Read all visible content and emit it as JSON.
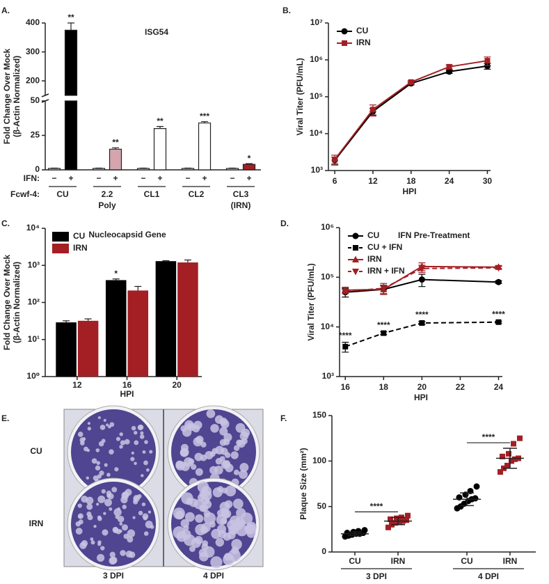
{
  "chart_data": [
    {
      "type": "bar",
      "label": "A.",
      "title": "ISG54",
      "y_label": [
        "Fold Change Over Mock",
        "(β-Actin Normalized)"
      ],
      "category_row_label": "IFN:",
      "categories": [
        "−",
        "+",
        "−",
        "+",
        "−",
        "+",
        "−",
        "+",
        "−",
        "+"
      ],
      "group_row_label": "Fcwf-4:",
      "groups": [
        "CU",
        "2.2",
        "CL1",
        "CL2",
        "CL3"
      ],
      "group_sublabels": [
        null,
        "Poly",
        null,
        null,
        "(IRN)"
      ],
      "values": [
        1,
        375,
        1,
        15,
        1,
        30,
        1,
        34,
        1,
        4
      ],
      "errors": [
        0.3,
        25,
        0.3,
        1,
        0.3,
        1.5,
        0.3,
        1,
        0.3,
        0.5
      ],
      "colors": [
        "#ffffff",
        "#000000",
        "#ffffff",
        "#d4a5ad",
        "#ffffff",
        "#ffffff",
        "#ffffff",
        "#ffffff",
        "#ffffff",
        "#a31f24"
      ],
      "annotations": [
        null,
        "**",
        null,
        "**",
        null,
        "**",
        null,
        "***",
        null,
        "*"
      ],
      "ylim": [
        0,
        400
      ],
      "ybreak": [
        50,
        150
      ],
      "yticks": [
        0,
        25,
        50,
        200,
        300,
        400
      ]
    },
    {
      "type": "line",
      "label": "B.",
      "y_label": "Viral Titer (PFU/mL)",
      "x_label": "HPI",
      "log_y": true,
      "legend": "upper left",
      "x": [
        6,
        12,
        18,
        24,
        30
      ],
      "xlim": [
        5,
        30.5
      ],
      "xticks": [
        6,
        12,
        18,
        24,
        30
      ],
      "ylim": [
        1000,
        10000000
      ],
      "yticks": [
        {
          "value": 1000,
          "label": "10³"
        },
        {
          "value": 10000,
          "label": "10⁴"
        },
        {
          "value": 100000,
          "label": "10⁵"
        },
        {
          "value": 1000000,
          "label": "10⁶"
        },
        {
          "value": 10000000,
          "label": "10⁷"
        }
      ],
      "series": [
        {
          "name": "CU",
          "color": "#000000",
          "marker": "circle",
          "dash": "solid",
          "values": [
            1900,
            40000,
            230000,
            480000,
            680000
          ],
          "errors": [
            400,
            8000,
            20000,
            50000,
            120000
          ]
        },
        {
          "name": "IRN",
          "color": "#a31f24",
          "marker": "square",
          "dash": "solid",
          "values": [
            2000,
            45000,
            250000,
            650000,
            950000
          ],
          "errors": [
            600,
            15000,
            25000,
            80000,
            250000
          ]
        }
      ]
    },
    {
      "type": "bar",
      "label": "C.",
      "title": "Nucleocapsid Gene",
      "y_label": [
        "Fold Change Over Mock",
        "(β-Actin Normalized)"
      ],
      "x_label": "HPI",
      "log_y": true,
      "legend": "upper left",
      "categories": [
        "12",
        "16",
        "20"
      ],
      "ylim": [
        1,
        10000
      ],
      "yticks": [
        {
          "value": 1,
          "label": "10⁰"
        },
        {
          "value": 10,
          "label": "10¹"
        },
        {
          "value": 100,
          "label": "10²"
        },
        {
          "value": 1000,
          "label": "10³"
        },
        {
          "value": 10000,
          "label": "10⁴"
        }
      ],
      "series": [
        {
          "name": "CU",
          "color": "#000000",
          "values": [
            29,
            400,
            1300
          ],
          "errors": [
            3,
            30,
            40
          ],
          "annotations": [
            null,
            "*",
            null
          ]
        },
        {
          "name": "IRN",
          "color": "#a31f24",
          "values": [
            32,
            210,
            1200
          ],
          "errors": [
            4,
            60,
            200
          ]
        }
      ]
    },
    {
      "type": "line",
      "label": "D.",
      "title": "IFN Pre-Treatment",
      "y_label": "Viral Titer (PFU/mL)",
      "x_label": "HPI",
      "log_y": true,
      "legend": "upper left",
      "x": [
        16,
        18,
        20,
        24
      ],
      "xlim": [
        15.7,
        24.2
      ],
      "xticks": [
        16,
        18,
        20,
        22,
        24
      ],
      "ylim": [
        1000,
        1000000
      ],
      "yticks": [
        {
          "value": 1000,
          "label": "10³"
        },
        {
          "value": 10000,
          "label": "10⁴"
        },
        {
          "value": 100000,
          "label": "10⁵"
        },
        {
          "value": 1000000,
          "label": "10⁶"
        }
      ],
      "series": [
        {
          "name": "CU",
          "color": "#000000",
          "marker": "circle",
          "dash": "solid",
          "values": [
            50000,
            57000,
            90000,
            80000
          ],
          "errors": [
            10000,
            12000,
            25000,
            5000
          ]
        },
        {
          "name": "CU + IFN",
          "color": "#000000",
          "marker": "square",
          "dash": "dashed",
          "values": [
            4000,
            7500,
            12000,
            12500
          ],
          "errors": [
            900,
            500,
            800,
            600
          ],
          "annotations": [
            "****",
            "****",
            "****",
            "****"
          ]
        },
        {
          "name": "IRN",
          "color": "#a31f24",
          "marker": "triangle-up",
          "dash": "solid",
          "values": [
            55000,
            57000,
            165000,
            160000
          ],
          "errors": [
            8000,
            10000,
            30000,
            10000
          ]
        },
        {
          "name": "IRN + IFN",
          "color": "#a31f24",
          "marker": "triangle-down",
          "dash": "dashed",
          "values": [
            52000,
            60000,
            150000,
            155000
          ],
          "errors": [
            5000,
            15000,
            25000,
            10000
          ]
        }
      ]
    },
    {
      "type": "image",
      "label": "E.",
      "row_labels": [
        "CU",
        "IRN"
      ],
      "col_labels": [
        "3 DPI",
        "4 DPI"
      ]
    },
    {
      "type": "strip",
      "label": "F.",
      "y_label": "Plaque Size (mm²)",
      "categories": [
        "CU",
        "IRN",
        "CU",
        "IRN"
      ],
      "groups": [
        "3 DPI",
        "4 DPI"
      ],
      "group_annotations": [
        "****",
        "****"
      ],
      "colors": [
        "#000000",
        "#a31f24",
        "#000000",
        "#a31f24"
      ],
      "markers": [
        "circle",
        "square",
        "circle",
        "square"
      ],
      "values": [
        [
          17,
          18,
          19,
          20,
          20,
          21,
          21,
          22,
          23,
          24
        ],
        [
          27,
          30,
          32,
          33,
          34,
          35,
          36,
          37,
          38,
          40
        ],
        [
          48,
          50,
          53,
          56,
          58,
          59,
          60,
          63,
          67,
          72
        ],
        [
          88,
          92,
          95,
          100,
          102,
          103,
          105,
          108,
          119,
          125
        ]
      ],
      "means": [
        20,
        34,
        58,
        103
      ],
      "sds": [
        2,
        4,
        7,
        11
      ],
      "ylim": [
        0,
        150
      ],
      "yticks": [
        0,
        50,
        100,
        150
      ]
    }
  ]
}
